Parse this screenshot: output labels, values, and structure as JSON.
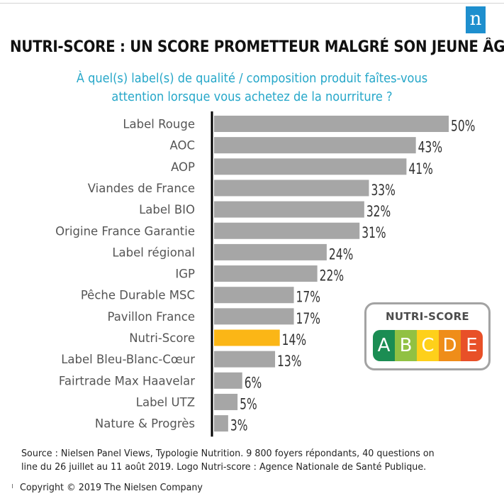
{
  "brand": {
    "logo_text": "n",
    "color": "#1e8fce"
  },
  "title": "NUTRI-SCORE : UN SCORE PROMETTEUR MALGRÉ SON JEUNE ÂGE",
  "subtitle_line1": "À quel(s) label(s) de qualité / composition produit faîtes-vous",
  "subtitle_line2": "attention lorsque vous achetez de la nourriture ?",
  "chart_data": {
    "type": "bar",
    "orientation": "horizontal",
    "categories": [
      "Label Rouge",
      "AOC",
      "AOP",
      "Viandes de France",
      "Label BIO",
      "Origine France Garantie",
      "Label régional",
      "IGP",
      "Pêche Durable MSC",
      "Pavillon France",
      "Nutri-Score",
      "Label Bleu-Blanc-Cœur",
      "Fairtrade Max Haavelar",
      "Label UTZ",
      "Nature & Progrès"
    ],
    "values": [
      50,
      43,
      41,
      33,
      32,
      31,
      24,
      22,
      17,
      17,
      14,
      13,
      6,
      5,
      3
    ],
    "value_labels": [
      "50%",
      "43%",
      "41%",
      "33%",
      "32%",
      "31%",
      "24%",
      "22%",
      "17%",
      "17%",
      "14%",
      "13%",
      "6%",
      "5%",
      "3%"
    ],
    "highlight_category": "Nutri-Score",
    "bar_color": "#a6a6a6",
    "highlight_color": "#fbb616",
    "axis_color": "#000000",
    "xlim": [
      0,
      50
    ],
    "unit": "%"
  },
  "nutri_score_logo": {
    "title": "NUTRI-SCORE",
    "letters": [
      {
        "letter": "A",
        "color": "#038141"
      },
      {
        "letter": "B",
        "color": "#85bb2f"
      },
      {
        "letter": "C",
        "color": "#fecb02"
      },
      {
        "letter": "D",
        "color": "#ee8100"
      },
      {
        "letter": "E",
        "color": "#e63e11"
      }
    ]
  },
  "source_line1": "Source : Nielsen Panel Views, Typologie Nutrition.  9 800 foyers répondants, 40 questions on",
  "source_line2": "line du 26 juillet au 11 août 2019.  Logo Nutri-score : Agence Nationale de Santé Publique.",
  "copyright": "Copyright © 2019 The Nielsen Company"
}
